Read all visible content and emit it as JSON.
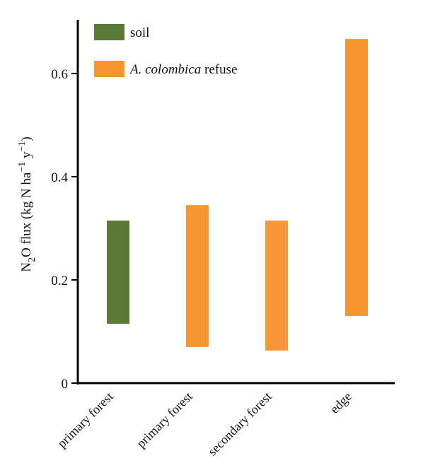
{
  "chart_data": {
    "type": "bar",
    "subtype": "floating-range",
    "categories": [
      "primary forest",
      "primary forest",
      "secondary forest",
      "edge"
    ],
    "series": [
      {
        "name": "soil",
        "color": "#587a34",
        "ranges": [
          [
            0.115,
            0.315
          ],
          null,
          null,
          null
        ]
      },
      {
        "name_parts": [
          "A. colombica",
          " refuse"
        ],
        "color": "#f7962f",
        "ranges": [
          null,
          [
            0.07,
            0.345
          ],
          [
            0.063,
            0.315
          ],
          [
            0.13,
            0.667
          ]
        ]
      }
    ],
    "range_colors": [
      "#587a34",
      "#f7962f",
      "#f7973a",
      "#f7962f"
    ],
    "ylabel_parts": [
      "N",
      "2",
      "O flux (kg N ha",
      "−1",
      " y",
      "−1",
      ")"
    ],
    "ylim": [
      0,
      0.7
    ],
    "yticks": [
      0,
      0.2,
      0.4,
      0.6
    ],
    "ytick_labels": [
      "0",
      "0.2",
      "0.4",
      "0.6"
    ],
    "legend": "top-left",
    "grid": false
  }
}
